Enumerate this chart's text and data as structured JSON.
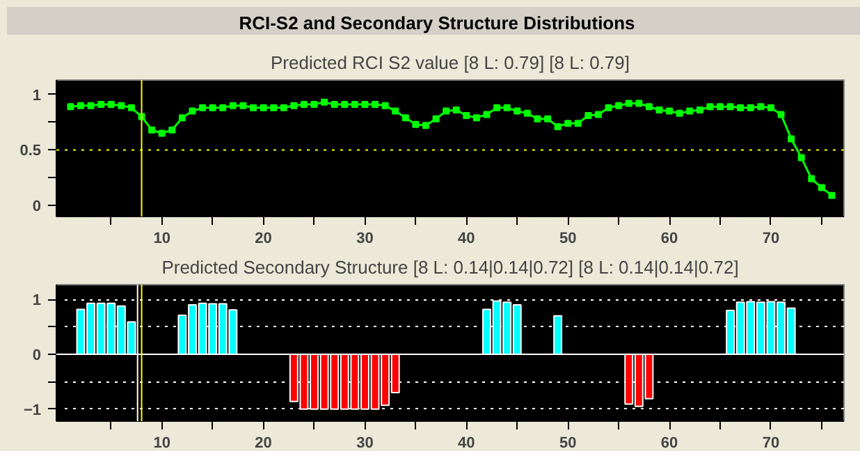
{
  "chart_data": [
    {
      "type": "line",
      "title": "Predicted RCI S2 value [8 L: 0.79] [8 L: 0.79]",
      "annotations": [
        "RCI-S2 and Secondary Structure Distributions"
      ],
      "marker": "square",
      "grid": false,
      "x": [
        1,
        2,
        3,
        4,
        5,
        6,
        7,
        8,
        9,
        10,
        11,
        12,
        13,
        14,
        15,
        16,
        17,
        18,
        19,
        20,
        21,
        22,
        23,
        24,
        25,
        26,
        27,
        28,
        29,
        30,
        31,
        32,
        33,
        34,
        35,
        36,
        37,
        38,
        39,
        40,
        41,
        42,
        43,
        44,
        45,
        46,
        47,
        48,
        49,
        50,
        51,
        52,
        53,
        54,
        55,
        56,
        57,
        58,
        59,
        60,
        61,
        62,
        63,
        64,
        65,
        66,
        67,
        68,
        69,
        70,
        71,
        72,
        73,
        74,
        75,
        76
      ],
      "series": [
        {
          "color": "#00ff00",
          "values": [
            0.89,
            0.9,
            0.9,
            0.91,
            0.91,
            0.9,
            0.88,
            0.8,
            0.68,
            0.65,
            0.68,
            0.79,
            0.85,
            0.88,
            0.88,
            0.88,
            0.9,
            0.9,
            0.88,
            0.88,
            0.88,
            0.88,
            0.9,
            0.91,
            0.91,
            0.93,
            0.91,
            0.91,
            0.91,
            0.91,
            0.91,
            0.9,
            0.85,
            0.79,
            0.73,
            0.72,
            0.78,
            0.85,
            0.86,
            0.81,
            0.79,
            0.82,
            0.88,
            0.88,
            0.85,
            0.83,
            0.78,
            0.78,
            0.71,
            0.74,
            0.74,
            0.81,
            0.82,
            0.88,
            0.9,
            0.92,
            0.92,
            0.89,
            0.86,
            0.85,
            0.83,
            0.85,
            0.86,
            0.89,
            0.89,
            0.89,
            0.88,
            0.88,
            0.89,
            0.88,
            0.82,
            0.6,
            0.43,
            0.24,
            0.16,
            0.09
          ]
        }
      ],
      "xlim": [
        -0.4,
        77.2
      ],
      "xticks": [
        {
          "value": 5,
          "label": null
        },
        10,
        {
          "value": 15,
          "label": null
        },
        20,
        {
          "value": 25,
          "label": null
        },
        30,
        {
          "value": 35,
          "label": null
        },
        40,
        {
          "value": 45,
          "label": null
        },
        50,
        {
          "value": 55,
          "label": null
        },
        60,
        {
          "value": 65,
          "label": null
        },
        70,
        {
          "value": 75,
          "label": null
        }
      ],
      "ylim": [
        -0.1,
        1.13
      ],
      "yticks": [
        0,
        {
          "value": 0.25,
          "label": null
        },
        0.5,
        {
          "value": 0.75,
          "label": null
        },
        1
      ],
      "ref_lines": [
        {
          "axis": "y",
          "value": 0.5,
          "color": "#ffff00",
          "line_style": "dotted"
        },
        {
          "axis": "x",
          "value": 8,
          "color": "#ffff00",
          "line_style": "solid"
        }
      ]
    },
    {
      "type": "bar",
      "title": "Predicted Secondary Structure [8 L: 0.14|0.14|0.72] [8 L: 0.14|0.14|0.72]",
      "grid": "y",
      "series": [
        {
          "color": "#00ffff",
          "x": [
            2,
            3,
            4,
            5,
            6,
            7,
            12,
            13,
            14,
            15,
            16,
            17,
            42,
            43,
            44,
            45,
            49,
            66,
            67,
            68,
            69,
            70,
            71,
            72
          ],
          "values": [
            0.82,
            0.93,
            0.93,
            0.93,
            0.88,
            0.59,
            0.71,
            0.9,
            0.93,
            0.92,
            0.92,
            0.81,
            0.82,
            0.97,
            0.95,
            0.9,
            0.7,
            0.8,
            0.95,
            0.96,
            0.95,
            0.96,
            0.95,
            0.84
          ]
        },
        {
          "color": "#ff0000",
          "x": [
            23,
            24,
            25,
            26,
            27,
            28,
            29,
            30,
            31,
            32,
            33,
            56,
            57,
            58
          ],
          "values": [
            -0.86,
            -1.0,
            -1.0,
            -1.0,
            -1.0,
            -1.0,
            -1.0,
            -1.0,
            -1.0,
            -0.93,
            -0.7,
            -0.91,
            -0.95,
            -0.81
          ]
        }
      ],
      "xlim": [
        -0.4,
        77.2
      ],
      "xticks": [
        {
          "value": 5,
          "label": null
        },
        10,
        {
          "value": 15,
          "label": null
        },
        20,
        {
          "value": 25,
          "label": null
        },
        30,
        {
          "value": 35,
          "label": null
        },
        40,
        {
          "value": 45,
          "label": null
        },
        50,
        {
          "value": 55,
          "label": null
        },
        60,
        {
          "value": 65,
          "label": null
        },
        70,
        {
          "value": 75,
          "label": null
        }
      ],
      "ylim": [
        -1.22,
        1.27
      ],
      "yticks": [
        -1,
        {
          "value": -0.5,
          "label": null
        },
        0,
        {
          "value": 0.5,
          "label": null
        },
        1
      ],
      "ref_lines": [
        {
          "axis": "y",
          "value": 0,
          "color": "#ffffff",
          "line_style": "solid"
        },
        {
          "axis": "x",
          "value": 7.6,
          "color": "#ffffff",
          "line_style": "solid"
        },
        {
          "axis": "x",
          "value": 8,
          "color": "#ffff00",
          "line_style": "solid"
        }
      ]
    }
  ]
}
